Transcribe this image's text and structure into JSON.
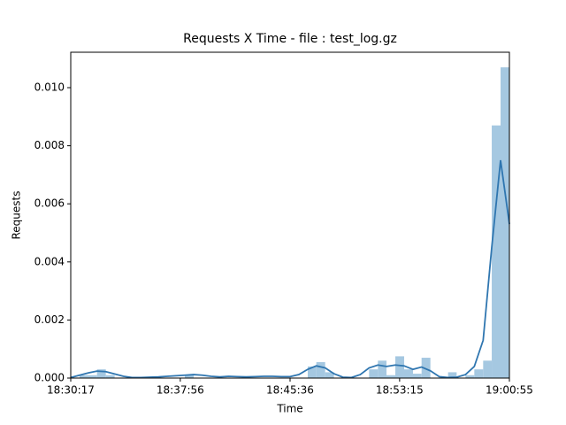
{
  "chart_data": {
    "type": "histogram",
    "title": "Requests X Time - file : test_log.gz",
    "xlabel": "Time",
    "ylabel": "Requests",
    "bins": [
      "18:30:17",
      "18:30:54",
      "18:31:31",
      "18:32:07",
      "18:32:44",
      "18:33:21",
      "18:33:58",
      "18:34:34",
      "18:35:11",
      "18:35:48",
      "18:36:25",
      "18:37:01",
      "18:37:38",
      "18:38:15",
      "18:38:52",
      "18:39:28",
      "18:40:05",
      "18:40:42",
      "18:41:19",
      "18:41:55",
      "18:42:32",
      "18:43:09",
      "18:43:46",
      "18:44:22",
      "18:44:59",
      "18:45:36",
      "18:46:13",
      "18:46:50",
      "18:47:26",
      "18:48:03",
      "18:48:40",
      "18:49:17",
      "18:49:53",
      "18:50:30",
      "18:51:07",
      "18:51:44",
      "18:52:20",
      "18:52:57",
      "18:53:34",
      "18:54:11",
      "18:54:47",
      "18:55:24",
      "18:56:01",
      "18:56:38",
      "18:57:14",
      "18:57:51",
      "18:58:28",
      "18:59:05",
      "18:59:41",
      "19:00:18",
      "19:00:55"
    ],
    "values": [
      0,
      0.0001,
      0.0001,
      0.0003,
      0.0001,
      0,
      0,
      0,
      0,
      0,
      0,
      0,
      0,
      0.0001,
      0,
      0,
      0,
      0,
      0,
      0,
      0,
      0,
      0,
      0,
      0,
      0,
      0,
      0.0004,
      0.00055,
      0.0002,
      0,
      0,
      0,
      0,
      0.0003,
      0.0006,
      0.0001,
      0.00075,
      0.0003,
      0.00015,
      0.0007,
      0,
      0,
      0.0002,
      0,
      0.0001,
      0.0003,
      0.0006,
      0.0087,
      0.0107
    ],
    "color": "#a5c8e1",
    "kde_values": [
      2e-05,
      0.0001,
      0.00018,
      0.00024,
      0.00022,
      0.00014,
      6e-05,
      2e-05,
      2e-05,
      3e-05,
      4e-05,
      6e-05,
      8e-05,
      0.0001,
      0.00012,
      0.0001,
      6e-05,
      4e-05,
      6e-05,
      5e-05,
      4e-05,
      5e-05,
      6e-05,
      6e-05,
      5e-05,
      5e-05,
      0.00012,
      0.0003,
      0.00042,
      0.00035,
      0.00015,
      3e-05,
      2e-05,
      0.00012,
      0.00035,
      0.00045,
      0.0004,
      0.00045,
      0.00042,
      0.0003,
      0.00038,
      0.00025,
      5e-05,
      2e-05,
      3e-05,
      0.00012,
      0.0004,
      0.0013,
      0.0045,
      0.0075,
      0.0053
    ],
    "kde_color": "#2f76b0",
    "xlim": [
      "18:30:17",
      "19:00:55"
    ],
    "xticks": [
      "18:30:17",
      "18:37:56",
      "18:45:36",
      "18:53:15",
      "19:00:55"
    ],
    "ylim": [
      0,
      0.01122
    ],
    "yticks": [
      {
        "value": 0,
        "label": "0.000"
      },
      {
        "value": 0.002,
        "label": "0.002"
      },
      {
        "value": 0.004,
        "label": "0.004"
      },
      {
        "value": 0.006,
        "label": "0.006"
      },
      {
        "value": 0.008,
        "label": "0.008"
      },
      {
        "value": 0.01,
        "label": "0.010"
      }
    ]
  }
}
